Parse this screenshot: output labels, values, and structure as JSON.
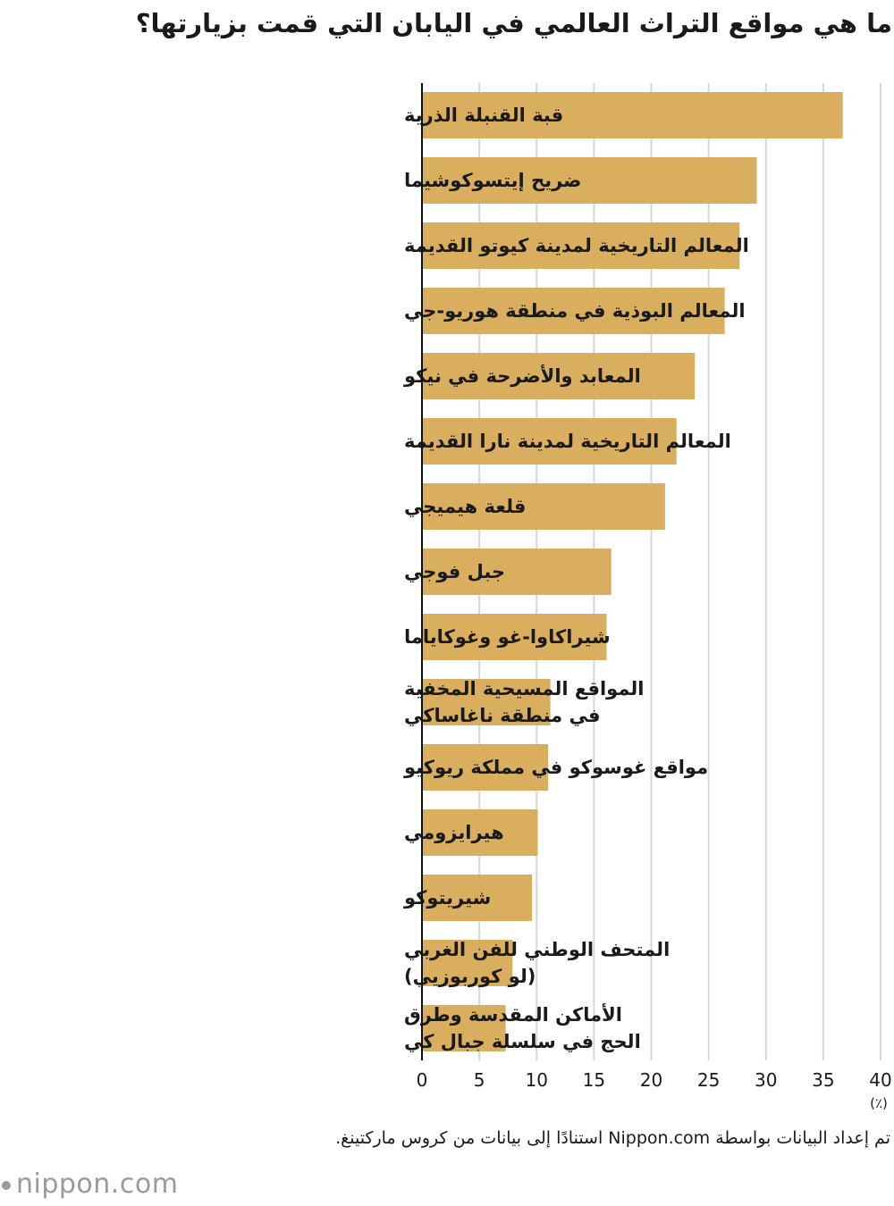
{
  "title": "ما هي مواقع التراث العالمي في اليابان التي قمت بزيارتها؟",
  "source_note": "تم إعداد البيانات بواسطة Nippon.com استنادًا إلى بيانات من كروس ماركتينغ.",
  "logo_text": "nippon.com",
  "colors": {
    "bar": "#d9ae5f",
    "grid": "#d6d6d6",
    "axis": "#111111",
    "text": "#1a1a1a"
  },
  "chart_data": {
    "type": "bar",
    "orientation": "horizontal",
    "unit_label": "(٪)",
    "xlim": [
      0,
      40
    ],
    "xticks": [
      0,
      5,
      10,
      15,
      20,
      25,
      30,
      35,
      40
    ],
    "grid": true,
    "categories": [
      [
        "قبة القنبلة الذرية"
      ],
      [
        "ضريح إيتسوكوشيما"
      ],
      [
        "المعالم التاريخية لمدينة كيوتو القديمة"
      ],
      [
        "المعالم البوذية في منطقة هوريو-جي"
      ],
      [
        "المعابد والأضرحة في نيكو"
      ],
      [
        "المعالم التاريخية لمدينة نارا القديمة"
      ],
      [
        "قلعة هيميجي"
      ],
      [
        "جبل فوجي"
      ],
      [
        "شيراكاوا-غو وغوكاياما"
      ],
      [
        "المواقع المسيحية المخفية",
        "في منطقة ناغاساكي"
      ],
      [
        "مواقع غوسوكو في مملكة ريوكيو"
      ],
      [
        "هيرايزومي"
      ],
      [
        "شيريتوكو"
      ],
      [
        "المتحف الوطني للفن الغربي",
        "(لو كوربوزيي)"
      ],
      [
        "الأماكن المقدسة وطرق",
        "الحج في سلسلة جبال كي"
      ]
    ],
    "values": [
      36.7,
      29.2,
      27.7,
      26.4,
      23.8,
      22.2,
      21.2,
      16.5,
      16.1,
      11.2,
      11.0,
      10.1,
      9.6,
      7.9,
      7.3
    ]
  }
}
